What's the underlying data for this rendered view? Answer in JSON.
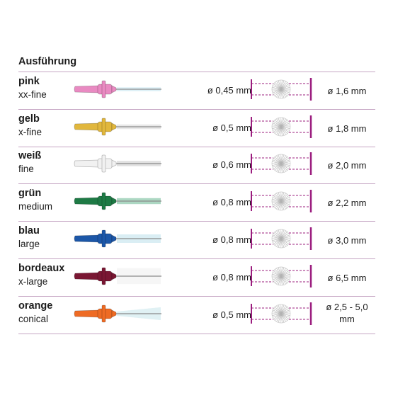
{
  "heading": "Ausführung",
  "colors": {
    "divider": "#c6a6c4",
    "accent": "#9b1d7e"
  },
  "rows": [
    {
      "color_name": "pink",
      "size_name": "xx-fine",
      "wire": "ø 0,45 mm",
      "diameter": "ø 1,6 mm",
      "handle_color": "#e98ac2",
      "bristle_color": "#c9e6f2",
      "brush_width": 0.18
    },
    {
      "color_name": "gelb",
      "size_name": "x-fine",
      "wire": "ø 0,5 mm",
      "diameter": "ø 1,8 mm",
      "handle_color": "#e1b73d",
      "bristle_color": "#dcdcdc",
      "brush_width": 0.22
    },
    {
      "color_name": "weiß",
      "size_name": "fine",
      "wire": "ø 0,6 mm",
      "diameter": "ø 2,0 mm",
      "handle_color": "#f1f1f1",
      "bristle_color": "#d0d0d0",
      "brush_width": 0.25
    },
    {
      "color_name": "grün",
      "size_name": "medium",
      "wire": "ø 0,8 mm",
      "diameter": "ø 2,2 mm",
      "handle_color": "#1e7a45",
      "bristle_color": "#7fc1a0",
      "brush_width": 0.28
    },
    {
      "color_name": "blau",
      "size_name": "large",
      "wire": "ø 0,8 mm",
      "diameter": "ø 3,0 mm",
      "handle_color": "#1c57a8",
      "bristle_color": "#c5e4ee",
      "brush_width": 0.4
    },
    {
      "color_name": "bordeaux",
      "size_name": "x-large",
      "wire": "ø 0,8 mm",
      "diameter": "ø 6,5 mm",
      "handle_color": "#7a1733",
      "bristle_color": "#f2f2f2",
      "brush_width": 0.75
    },
    {
      "color_name": "orange",
      "size_name": "conical",
      "wire": "ø 0,5 mm",
      "diameter": "ø 2,5 - 5,0 mm",
      "handle_color": "#ee6b24",
      "bristle_color": "#cfe9ef",
      "brush_width": 0.6
    }
  ]
}
